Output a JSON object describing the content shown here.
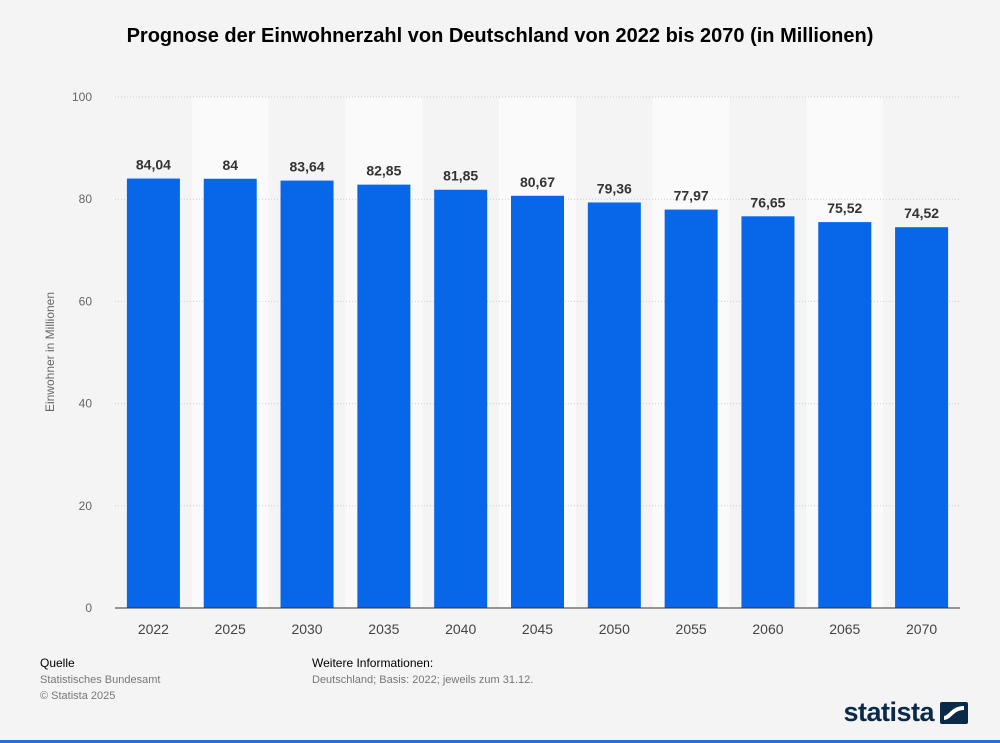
{
  "chart_data": {
    "type": "bar",
    "title": "Prognose der Einwohnerzahl von Deutschland von 2022 bis 2070 (in Millionen)",
    "ylabel": "Einwohner in Millionen",
    "xlabel": "",
    "categories": [
      "2022",
      "2025",
      "2030",
      "2035",
      "2040",
      "2045",
      "2050",
      "2055",
      "2060",
      "2065",
      "2070"
    ],
    "values": [
      84.04,
      84,
      83.64,
      82.85,
      81.85,
      80.67,
      79.36,
      77.97,
      76.65,
      75.52,
      74.52
    ],
    "value_labels": [
      "84,04",
      "84",
      "83,64",
      "82,85",
      "81,85",
      "80,67",
      "79,36",
      "77,97",
      "76,65",
      "75,52",
      "74,52"
    ],
    "ylim": [
      0,
      100
    ],
    "yticks": [
      0,
      20,
      40,
      60,
      80,
      100
    ],
    "grid": true,
    "legend": "none",
    "bar_color": "#0866e8"
  },
  "footer": {
    "source_label": "Quelle",
    "source_name": "Statistisches Bundesamt",
    "copyright": "© Statista 2025",
    "info_label": "Weitere Informationen:",
    "info_text": "Deutschland; Basis: 2022; jeweils zum 31.12."
  },
  "brand": {
    "name": "statista"
  }
}
